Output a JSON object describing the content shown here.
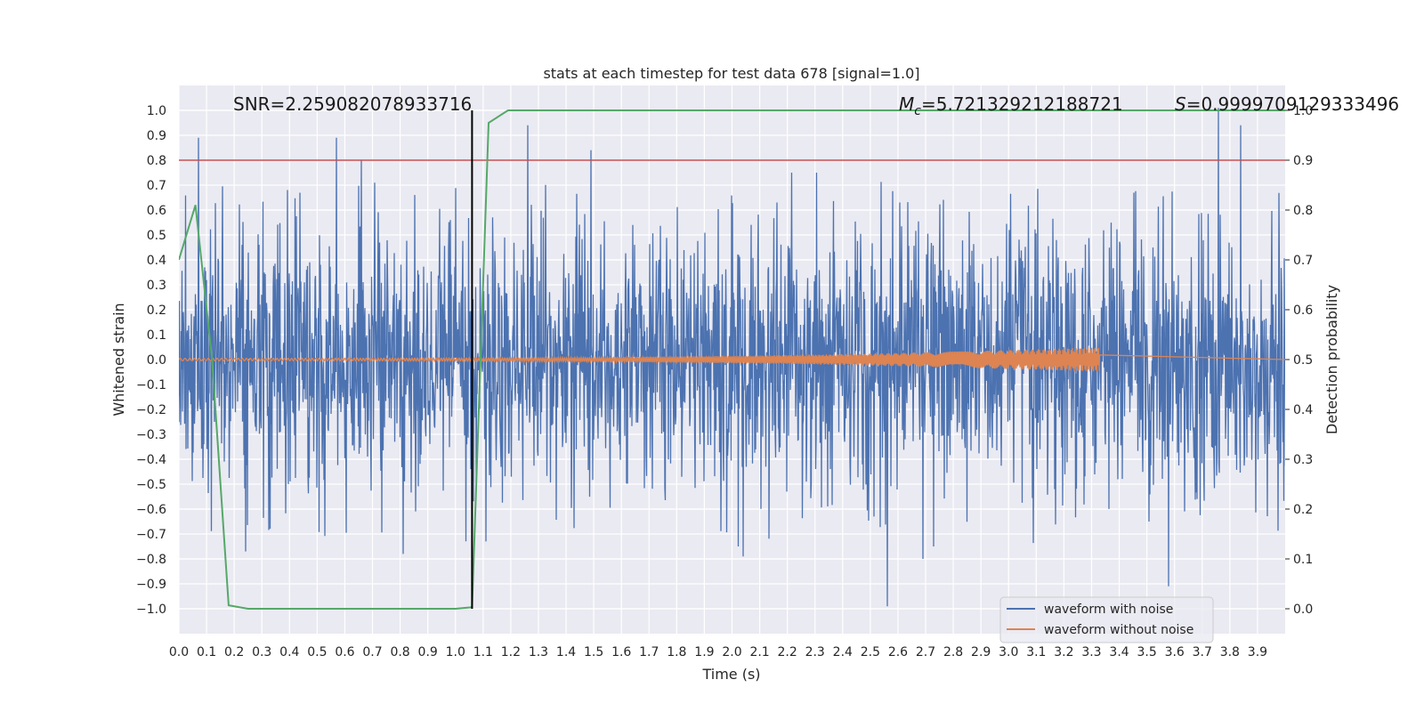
{
  "chart_data": {
    "type": "line",
    "title": "stats at each timestep for test data 678 [signal=1.0]",
    "xlabel": "Time (s)",
    "ylabel": "Whitened strain",
    "y2label": "Detection probability",
    "xlim": [
      0.0,
      4.0
    ],
    "ylim": [
      -1.1,
      1.1
    ],
    "y2lim": [
      -0.05,
      1.05
    ],
    "xticks": [
      0.0,
      0.1,
      0.2,
      0.3,
      0.4,
      0.5,
      0.6,
      0.7,
      0.8,
      0.9,
      1.0,
      1.1,
      1.2,
      1.3,
      1.4,
      1.5,
      1.6,
      1.7,
      1.8,
      1.9,
      2.0,
      2.1,
      2.2,
      2.3,
      2.4,
      2.5,
      2.6,
      2.7,
      2.8,
      2.9,
      3.0,
      3.1,
      3.2,
      3.3,
      3.4,
      3.5,
      3.6,
      3.7,
      3.8,
      3.9
    ],
    "xtick_labels": [
      "0.0",
      "0.1",
      "0.2",
      "0.3",
      "0.4",
      "0.5",
      "0.6",
      "0.7",
      "0.8",
      "0.9",
      "1.0",
      "1.1",
      "1.2",
      "1.3",
      "1.4",
      "1.5",
      "1.6",
      "1.7",
      "1.8",
      "1.9",
      "2.0",
      "2.1",
      "2.2",
      "2.3",
      "2.4",
      "2.5",
      "2.6",
      "2.7",
      "2.8",
      "2.9",
      "3.0",
      "3.1",
      "3.2",
      "3.3",
      "3.4",
      "3.5",
      "3.6",
      "3.7",
      "3.8",
      "3.9"
    ],
    "yticks": [
      1.0,
      0.9,
      0.8,
      0.7,
      0.6,
      0.5,
      0.4,
      0.3,
      0.2,
      0.1,
      0.0,
      -0.1,
      -0.2,
      -0.3,
      -0.4,
      -0.5,
      -0.6,
      -0.7,
      -0.8,
      -0.9,
      -1.0
    ],
    "ytick_labels": [
      "1.0",
      "0.9",
      "0.8",
      "0.7",
      "0.6",
      "0.5",
      "0.4",
      "0.3",
      "0.2",
      "0.1",
      "0.0",
      "−0.1",
      "−0.2",
      "−0.3",
      "−0.4",
      "−0.5",
      "−0.6",
      "−0.7",
      "−0.8",
      "−0.9",
      "−1.0"
    ],
    "y2ticks": [
      1.0,
      0.9,
      0.8,
      0.7,
      0.6,
      0.5,
      0.4,
      0.3,
      0.2,
      0.1,
      0.0
    ],
    "y2tick_labels": [
      "1.0",
      "0.9",
      "0.8",
      "0.7",
      "0.6",
      "0.5",
      "0.4",
      "0.3",
      "0.2",
      "0.1",
      "0.0"
    ],
    "annotations": {
      "snr": "SNR=2.259082078933716",
      "mc_symbol": "M",
      "mc_sub": "c",
      "mc_value": "=5.721329212188721",
      "s_symbol": "S",
      "s_value": "=0.9999709129333496"
    },
    "legend": {
      "position": "lower-right",
      "entries": [
        "waveform with noise",
        "waveform without noise"
      ]
    },
    "colors": {
      "noise": "#4c72b0",
      "clean": "#dd8452",
      "probability": "#55a868",
      "threshold": "#c44e52",
      "event_marker": "#000000",
      "plot_bg": "#eaeaf2"
    },
    "series": [
      {
        "name": "waveform with noise",
        "axis": "left",
        "kind": "noise",
        "x_range": [
          0.0,
          4.0
        ],
        "typical_amplitude": 0.35,
        "extreme_peaks": [
          {
            "x": 0.07,
            "y": 0.89
          },
          {
            "x": 0.57,
            "y": 0.89
          },
          {
            "x": 1.26,
            "y": 0.94
          },
          {
            "x": 1.49,
            "y": 0.84
          },
          {
            "x": 3.76,
            "y": 1.01
          },
          {
            "x": 3.84,
            "y": 0.94
          },
          {
            "x": 0.66,
            "y": 0.8
          },
          {
            "x": 0.24,
            "y": -0.77
          },
          {
            "x": 0.81,
            "y": -0.78
          },
          {
            "x": 2.56,
            "y": -0.99
          },
          {
            "x": 3.58,
            "y": -0.91
          },
          {
            "x": 1.11,
            "y": -0.73
          },
          {
            "x": 2.69,
            "y": -0.8
          },
          {
            "x": 2.04,
            "y": -0.79
          }
        ]
      },
      {
        "name": "waveform without noise",
        "axis": "left",
        "kind": "chirp",
        "x_range": [
          0.0,
          3.33
        ],
        "start_amplitude": 0.005,
        "end_amplitude": 0.05
      },
      {
        "name": "detection probability",
        "axis": "right",
        "x": [
          0.0,
          0.06,
          0.12,
          0.18,
          0.25,
          0.5,
          1.0,
          1.06,
          1.12,
          1.19,
          1.5,
          2.0,
          3.0,
          4.0
        ],
        "y": [
          0.7,
          0.81,
          0.5,
          0.007,
          0.0,
          0.0,
          0.0,
          0.003,
          0.975,
          1.0,
          1.0,
          1.0,
          1.0,
          1.0
        ]
      },
      {
        "name": "threshold",
        "axis": "left",
        "y": 0.8
      },
      {
        "name": "event marker",
        "axis": "left",
        "x": 1.06,
        "y_range": [
          -1.0,
          1.0
        ]
      }
    ]
  }
}
